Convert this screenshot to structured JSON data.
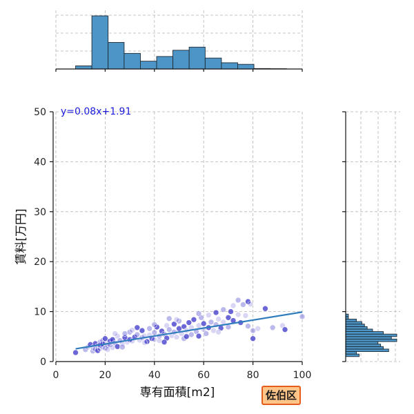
{
  "chart_data": {
    "type": "scatter",
    "xlabel": "専有面積[m2]",
    "ylabel": "賃料[万円]",
    "xlim": [
      0,
      100
    ],
    "ylim": [
      0,
      50
    ],
    "x_ticks": [
      0,
      20,
      40,
      60,
      80,
      100
    ],
    "y_ticks": [
      0,
      10,
      20,
      30,
      40,
      50
    ],
    "grid": true,
    "regression": {
      "slope": 0.08,
      "intercept": 1.91,
      "x_range": [
        8,
        100
      ],
      "label": "y=0.08x+1.91"
    },
    "points": [
      [
        8,
        1.8
      ],
      [
        12,
        2.4
      ],
      [
        13,
        2.9
      ],
      [
        14,
        3.4
      ],
      [
        15,
        2.1
      ],
      [
        15,
        2.8
      ],
      [
        16,
        3.6
      ],
      [
        16,
        2.5
      ],
      [
        17,
        3.1
      ],
      [
        17,
        2.2
      ],
      [
        18,
        3.9
      ],
      [
        18,
        2.6
      ],
      [
        18,
        3.3
      ],
      [
        19,
        4.2
      ],
      [
        19,
        2.9
      ],
      [
        19,
        3.5
      ],
      [
        20,
        2.7
      ],
      [
        20,
        3.8
      ],
      [
        20,
        4.6
      ],
      [
        21,
        3.2
      ],
      [
        21,
        2.4
      ],
      [
        22,
        4.1
      ],
      [
        22,
        3.4
      ],
      [
        23,
        2.8
      ],
      [
        23,
        4.4
      ],
      [
        24,
        3.7
      ],
      [
        25,
        5.1
      ],
      [
        25,
        3.0
      ],
      [
        26,
        4.2
      ],
      [
        27,
        3.6
      ],
      [
        28,
        4.8
      ],
      [
        28,
        5.6
      ],
      [
        29,
        3.9
      ],
      [
        30,
        4.4
      ],
      [
        30,
        5.9
      ],
      [
        31,
        4.1
      ],
      [
        32,
        4.9
      ],
      [
        33,
        5.4
      ],
      [
        34,
        4.3
      ],
      [
        35,
        6.2
      ],
      [
        35,
        4.8
      ],
      [
        36,
        5.1
      ],
      [
        37,
        4.0
      ],
      [
        38,
        6.6
      ],
      [
        38,
        5.3
      ],
      [
        39,
        4.6
      ],
      [
        40,
        5.8
      ],
      [
        40,
        4.4
      ],
      [
        41,
        6.9
      ],
      [
        42,
        5.1
      ],
      [
        42,
        4.2
      ],
      [
        43,
        6.1
      ],
      [
        44,
        5.5
      ],
      [
        45,
        7.2
      ],
      [
        45,
        4.7
      ],
      [
        46,
        6.4
      ],
      [
        47,
        5.2
      ],
      [
        48,
        7.5
      ],
      [
        48,
        5.9
      ],
      [
        49,
        4.9
      ],
      [
        50,
        6.6
      ],
      [
        50,
        8.1
      ],
      [
        51,
        5.6
      ],
      [
        52,
        7.0
      ],
      [
        52,
        4.6
      ],
      [
        53,
        6.2
      ],
      [
        54,
        7.8
      ],
      [
        55,
        5.4
      ],
      [
        55,
        6.8
      ],
      [
        56,
        8.4
      ],
      [
        57,
        6.0
      ],
      [
        58,
        7.2
      ],
      [
        58,
        5.1
      ],
      [
        59,
        8.8
      ],
      [
        60,
        6.4
      ],
      [
        60,
        7.6
      ],
      [
        61,
        5.6
      ],
      [
        62,
        9.3
      ],
      [
        62,
        6.8
      ],
      [
        63,
        7.9
      ],
      [
        64,
        6.2
      ],
      [
        65,
        9.8
      ],
      [
        65,
        7.4
      ],
      [
        66,
        8.5
      ],
      [
        67,
        6.7
      ],
      [
        68,
        10.4
      ],
      [
        68,
        7.9
      ],
      [
        70,
        8.8
      ],
      [
        70,
        6.9
      ],
      [
        72,
        11.2
      ],
      [
        72,
        8.2
      ],
      [
        74,
        12.3
      ],
      [
        74,
        9.4
      ],
      [
        75,
        7.8
      ],
      [
        76,
        11.4
      ],
      [
        77,
        9.2
      ],
      [
        78,
        12.0
      ],
      [
        78,
        7.1
      ],
      [
        79,
        11.5
      ],
      [
        80,
        4.6
      ],
      [
        80,
        6.2
      ],
      [
        82,
        6.6
      ],
      [
        85,
        10.6
      ],
      [
        88,
        6.8
      ],
      [
        92,
        7.2
      ],
      [
        93,
        6.4
      ],
      [
        100,
        9.0
      ],
      [
        24,
        5.6
      ],
      [
        33,
        6.8
      ],
      [
        46,
        8.6
      ],
      [
        36,
        3.8
      ],
      [
        44,
        3.9
      ],
      [
        27,
        2.9
      ],
      [
        31,
        6.3
      ],
      [
        53,
        5.0
      ],
      [
        58,
        9.6
      ],
      [
        66,
        5.9
      ],
      [
        71,
        10.0
      ],
      [
        40,
        7.4
      ],
      [
        49,
        8.4
      ]
    ],
    "x_hist": {
      "bin_edges": [
        8,
        14.6,
        21.2,
        27.7,
        34.3,
        40.9,
        47.5,
        54.1,
        60.6,
        67.2,
        73.8,
        80.4,
        87,
        93.6
      ],
      "counts": [
        2,
        34,
        17,
        10,
        5,
        8,
        12,
        14,
        7,
        4,
        3,
        0.3,
        0.2
      ]
    },
    "y_hist": {
      "bin_edges": [
        1,
        1.5,
        2,
        2.5,
        3,
        3.5,
        4,
        4.5,
        5,
        5.5,
        6,
        6.5,
        7,
        7.5,
        8,
        8.5,
        9,
        9.5,
        10,
        10.5,
        11,
        11.5,
        12,
        12.5
      ],
      "counts": [
        5,
        4,
        16,
        14,
        13,
        12,
        19,
        17,
        19,
        14,
        10,
        8,
        7,
        6,
        4,
        1,
        1,
        0,
        0,
        0,
        0,
        0,
        0,
        1
      ]
    }
  },
  "regression_label": "y=0.08x+1.91",
  "ward_badge": "佐伯区"
}
